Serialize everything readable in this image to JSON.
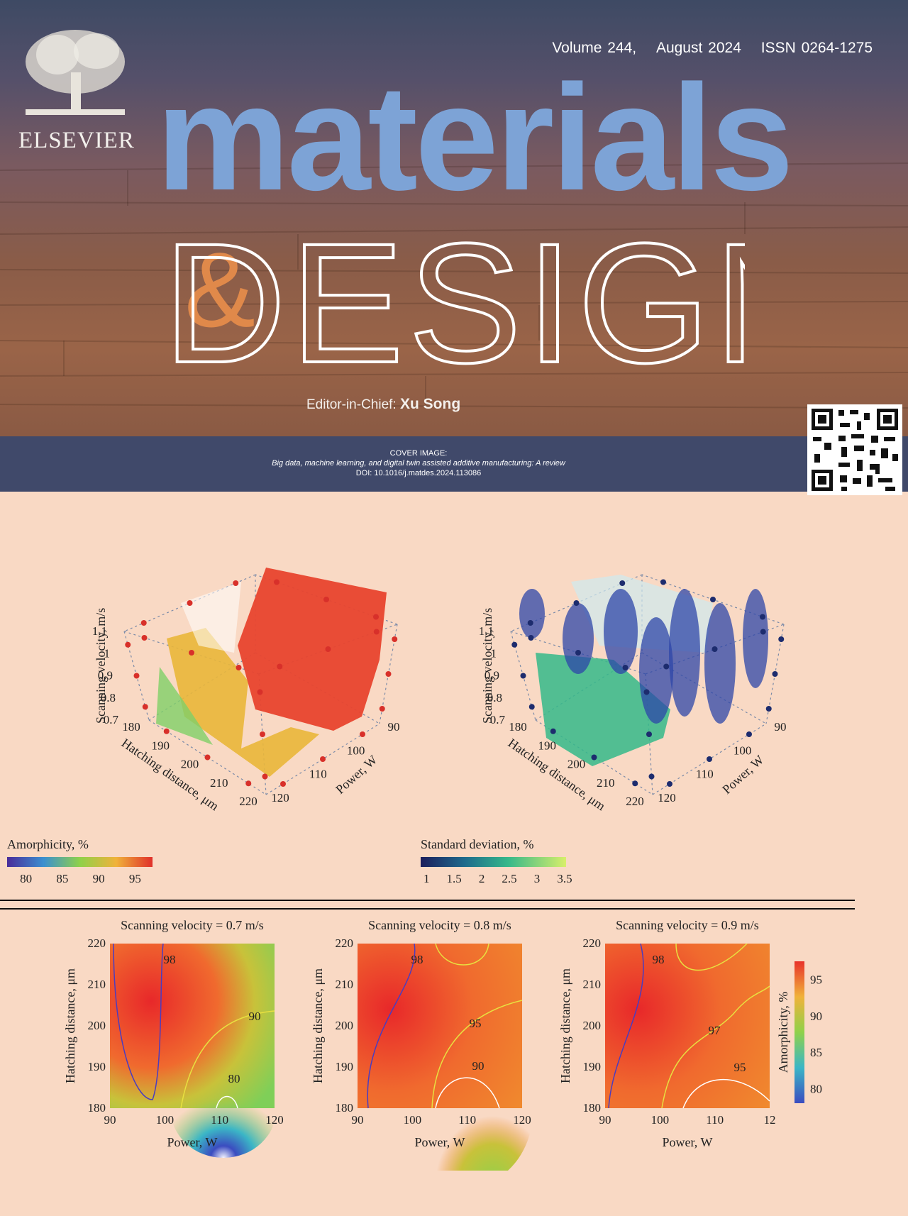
{
  "header": {
    "publisher": "ELSEVIER",
    "volume": "Volume 244,",
    "date": "August 2024",
    "issn": "ISSN 0264-1275",
    "title_top": "materials",
    "title_amp": "&",
    "title_bottom": "DESIGN",
    "editor_label": "Editor-in-Chief:",
    "editor_name": "Xu Song",
    "cover_label": "COVER IMAGE:",
    "cover_title": "Big data, machine learning, and digital twin assisted additive manufacturing: A review",
    "cover_doi": "DOI: 10.1016/j.matdes.2024.113086",
    "colors": {
      "title_blue": "#7da3d6",
      "amp_orange": "#e0894a",
      "band": "#40496a",
      "background": "#f9d9c4"
    }
  },
  "chart_data": [
    {
      "type": "scatter",
      "title": "",
      "zlabel": "Scanning velocity, m/s",
      "xlabel": "Hatching distance, μm",
      "ylabel": "Power, W",
      "z_ticks": [
        "0.7",
        "0.8",
        "0.9",
        "1",
        "1.1"
      ],
      "x_ticks": [
        "180",
        "190",
        "200",
        "210",
        "220"
      ],
      "y_ticks": [
        "90",
        "100",
        "110",
        "120"
      ],
      "colorbar": {
        "title": "Amorphicity, %",
        "ticks": [
          "80",
          "85",
          "90",
          "95"
        ]
      }
    },
    {
      "type": "scatter",
      "title": "",
      "zlabel": "Scanning velocity, m/s",
      "xlabel": "Hatching distance, μm",
      "ylabel": "Power, W",
      "z_ticks": [
        "0.7",
        "0.8",
        "0.9",
        "1",
        "1.1"
      ],
      "x_ticks": [
        "180",
        "190",
        "200",
        "210",
        "220"
      ],
      "y_ticks": [
        "90",
        "100",
        "110",
        "120"
      ],
      "colorbar": {
        "title": "Standard deviation, %",
        "ticks": [
          "1",
          "1.5",
          "2",
          "2.5",
          "3",
          "3.5"
        ]
      }
    },
    {
      "type": "heatmap",
      "title": "Scanning velocity = 0.7 m/s",
      "xlabel": "Power, W",
      "ylabel": "Hatching distance, μm",
      "x_ticks": [
        "90",
        "100",
        "110",
        "120"
      ],
      "y_ticks": [
        "180",
        "190",
        "200",
        "210",
        "220"
      ],
      "contour_labels": [
        "98",
        "90",
        "80"
      ]
    },
    {
      "type": "heatmap",
      "title": "Scanning velocity = 0.8 m/s",
      "xlabel": "Power, W",
      "ylabel": "Hatching distance, μm",
      "x_ticks": [
        "90",
        "100",
        "110",
        "120"
      ],
      "y_ticks": [
        "180",
        "190",
        "200",
        "210",
        "220"
      ],
      "contour_labels": [
        "98",
        "95",
        "90"
      ]
    },
    {
      "type": "heatmap",
      "title": "Scanning velocity = 0.9 m/s",
      "xlabel": "Power, W",
      "ylabel": "Hatching distance, μm",
      "x_ticks": [
        "90",
        "100",
        "110",
        "12"
      ],
      "y_ticks": [
        "180",
        "190",
        "200",
        "210",
        "220"
      ],
      "contour_labels": [
        "98",
        "97",
        "95"
      ],
      "colorbar": {
        "title": "Amorphicity, %",
        "ticks": [
          "80",
          "85",
          "90",
          "95"
        ]
      }
    }
  ]
}
